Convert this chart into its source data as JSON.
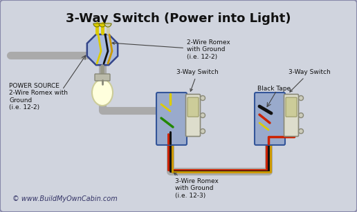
{
  "title": "3-Way Switch (Power into Light)",
  "bg_color": "#d0d4de",
  "border_color": "#8888aa",
  "title_fontsize": 13,
  "title_color": "#111111",
  "labels": {
    "power_source": "POWER SOURCE\n2-Wire Romex with\nGround\n(i.e. 12-2)",
    "wire_2_romex": "2-Wire Romex\nwith Ground\n(i.e. 12-2)",
    "wire_3_romex": "3-Wire Romex\nwith Ground\n(i.e. 12-3)",
    "switch1": "3-Way Switch",
    "switch2": "3-Way Switch",
    "black_tape": "Black Tape",
    "copyright": "© www.BuildMyOwnCabin.com"
  },
  "colors": {
    "black": "#111111",
    "white": "#e8e8d8",
    "red": "#cc2200",
    "green": "#228800",
    "yellow": "#ddcc00",
    "bare": "#cc9900",
    "conduit": "#aaaaaa",
    "box_fill": "#99aacc",
    "box_edge": "#335599",
    "switch_body": "#ccccbb",
    "switch_edge": "#888877",
    "screw": "#bbbbaa"
  }
}
